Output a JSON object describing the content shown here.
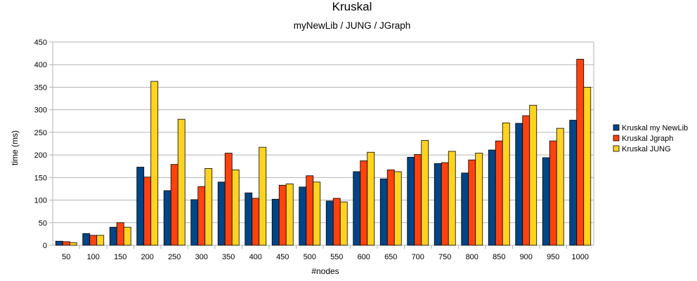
{
  "chart_data": {
    "type": "bar",
    "title": "Kruskal",
    "subtitle": "myNewLib / JUNG / JGraph",
    "xlabel": "#nodes",
    "ylabel": "time (ms)",
    "ylim": [
      0,
      450
    ],
    "yticks": [
      0,
      50,
      100,
      150,
      200,
      250,
      300,
      350,
      400,
      450
    ],
    "grid": true,
    "legend_position": "right",
    "categories": [
      "50",
      "100",
      "150",
      "200",
      "250",
      "300",
      "350",
      "400",
      "450",
      "500",
      "550",
      "600",
      "650",
      "700",
      "750",
      "800",
      "850",
      "900",
      "950",
      "1000"
    ],
    "series": [
      {
        "name": "Kruskal my NewLib",
        "color": "#004586",
        "values": [
          9,
          26,
          40,
          173,
          121,
          101,
          140,
          116,
          102,
          129,
          98,
          163,
          147,
          195,
          181,
          160,
          211,
          270,
          194,
          277
        ]
      },
      {
        "name": "Kruskal Jgraph",
        "color": "#ff420e",
        "values": [
          8,
          22,
          50,
          151,
          179,
          130,
          204,
          104,
          133,
          154,
          104,
          187,
          167,
          201,
          183,
          189,
          231,
          287,
          231,
          412
        ]
      },
      {
        "name": "Kruskal JUNG",
        "color": "#ffd320",
        "values": [
          6,
          22,
          40,
          363,
          279,
          170,
          167,
          217,
          136,
          140,
          96,
          206,
          163,
          232,
          208,
          204,
          271,
          310,
          259,
          350
        ]
      }
    ]
  }
}
